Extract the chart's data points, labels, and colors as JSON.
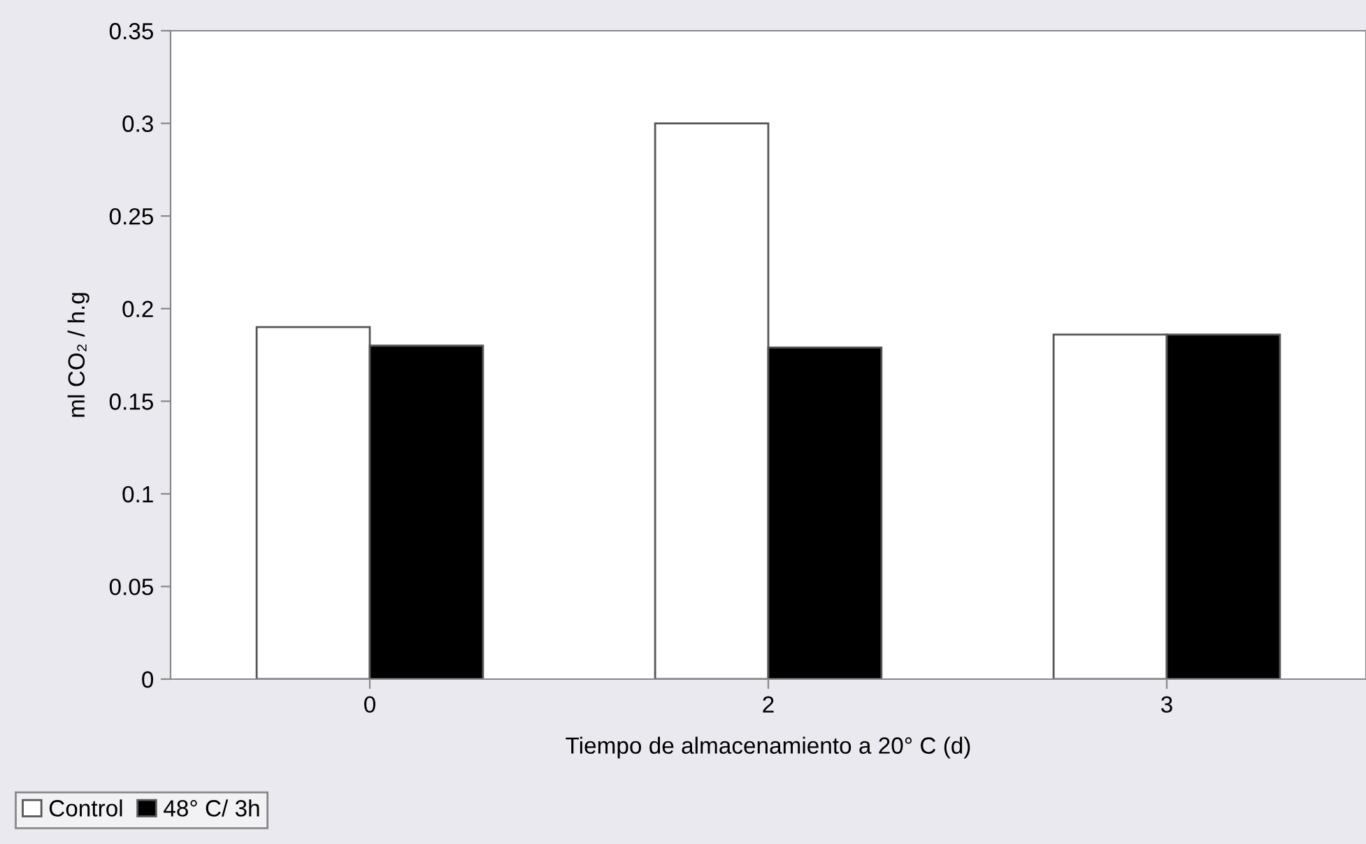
{
  "chart_data": {
    "type": "bar",
    "xlabel": "Tiempo de almacenamiento a 20° C (d)",
    "ylabel": "ml CO₂ / h.g",
    "categories": [
      "0",
      "2",
      "3"
    ],
    "series": [
      {
        "name": "Control",
        "color": "#ffffff",
        "values": [
          0.19,
          0.3,
          0.186
        ]
      },
      {
        "name": "48° C/ 3h",
        "color": "#000000",
        "values": [
          0.18,
          0.179,
          0.186
        ]
      }
    ],
    "ylim": [
      0,
      0.35
    ],
    "yticks": [
      0,
      0.05,
      0.1,
      0.15,
      0.2,
      0.25,
      0.3,
      0.35
    ],
    "grid": false,
    "legend": "bottom left"
  }
}
